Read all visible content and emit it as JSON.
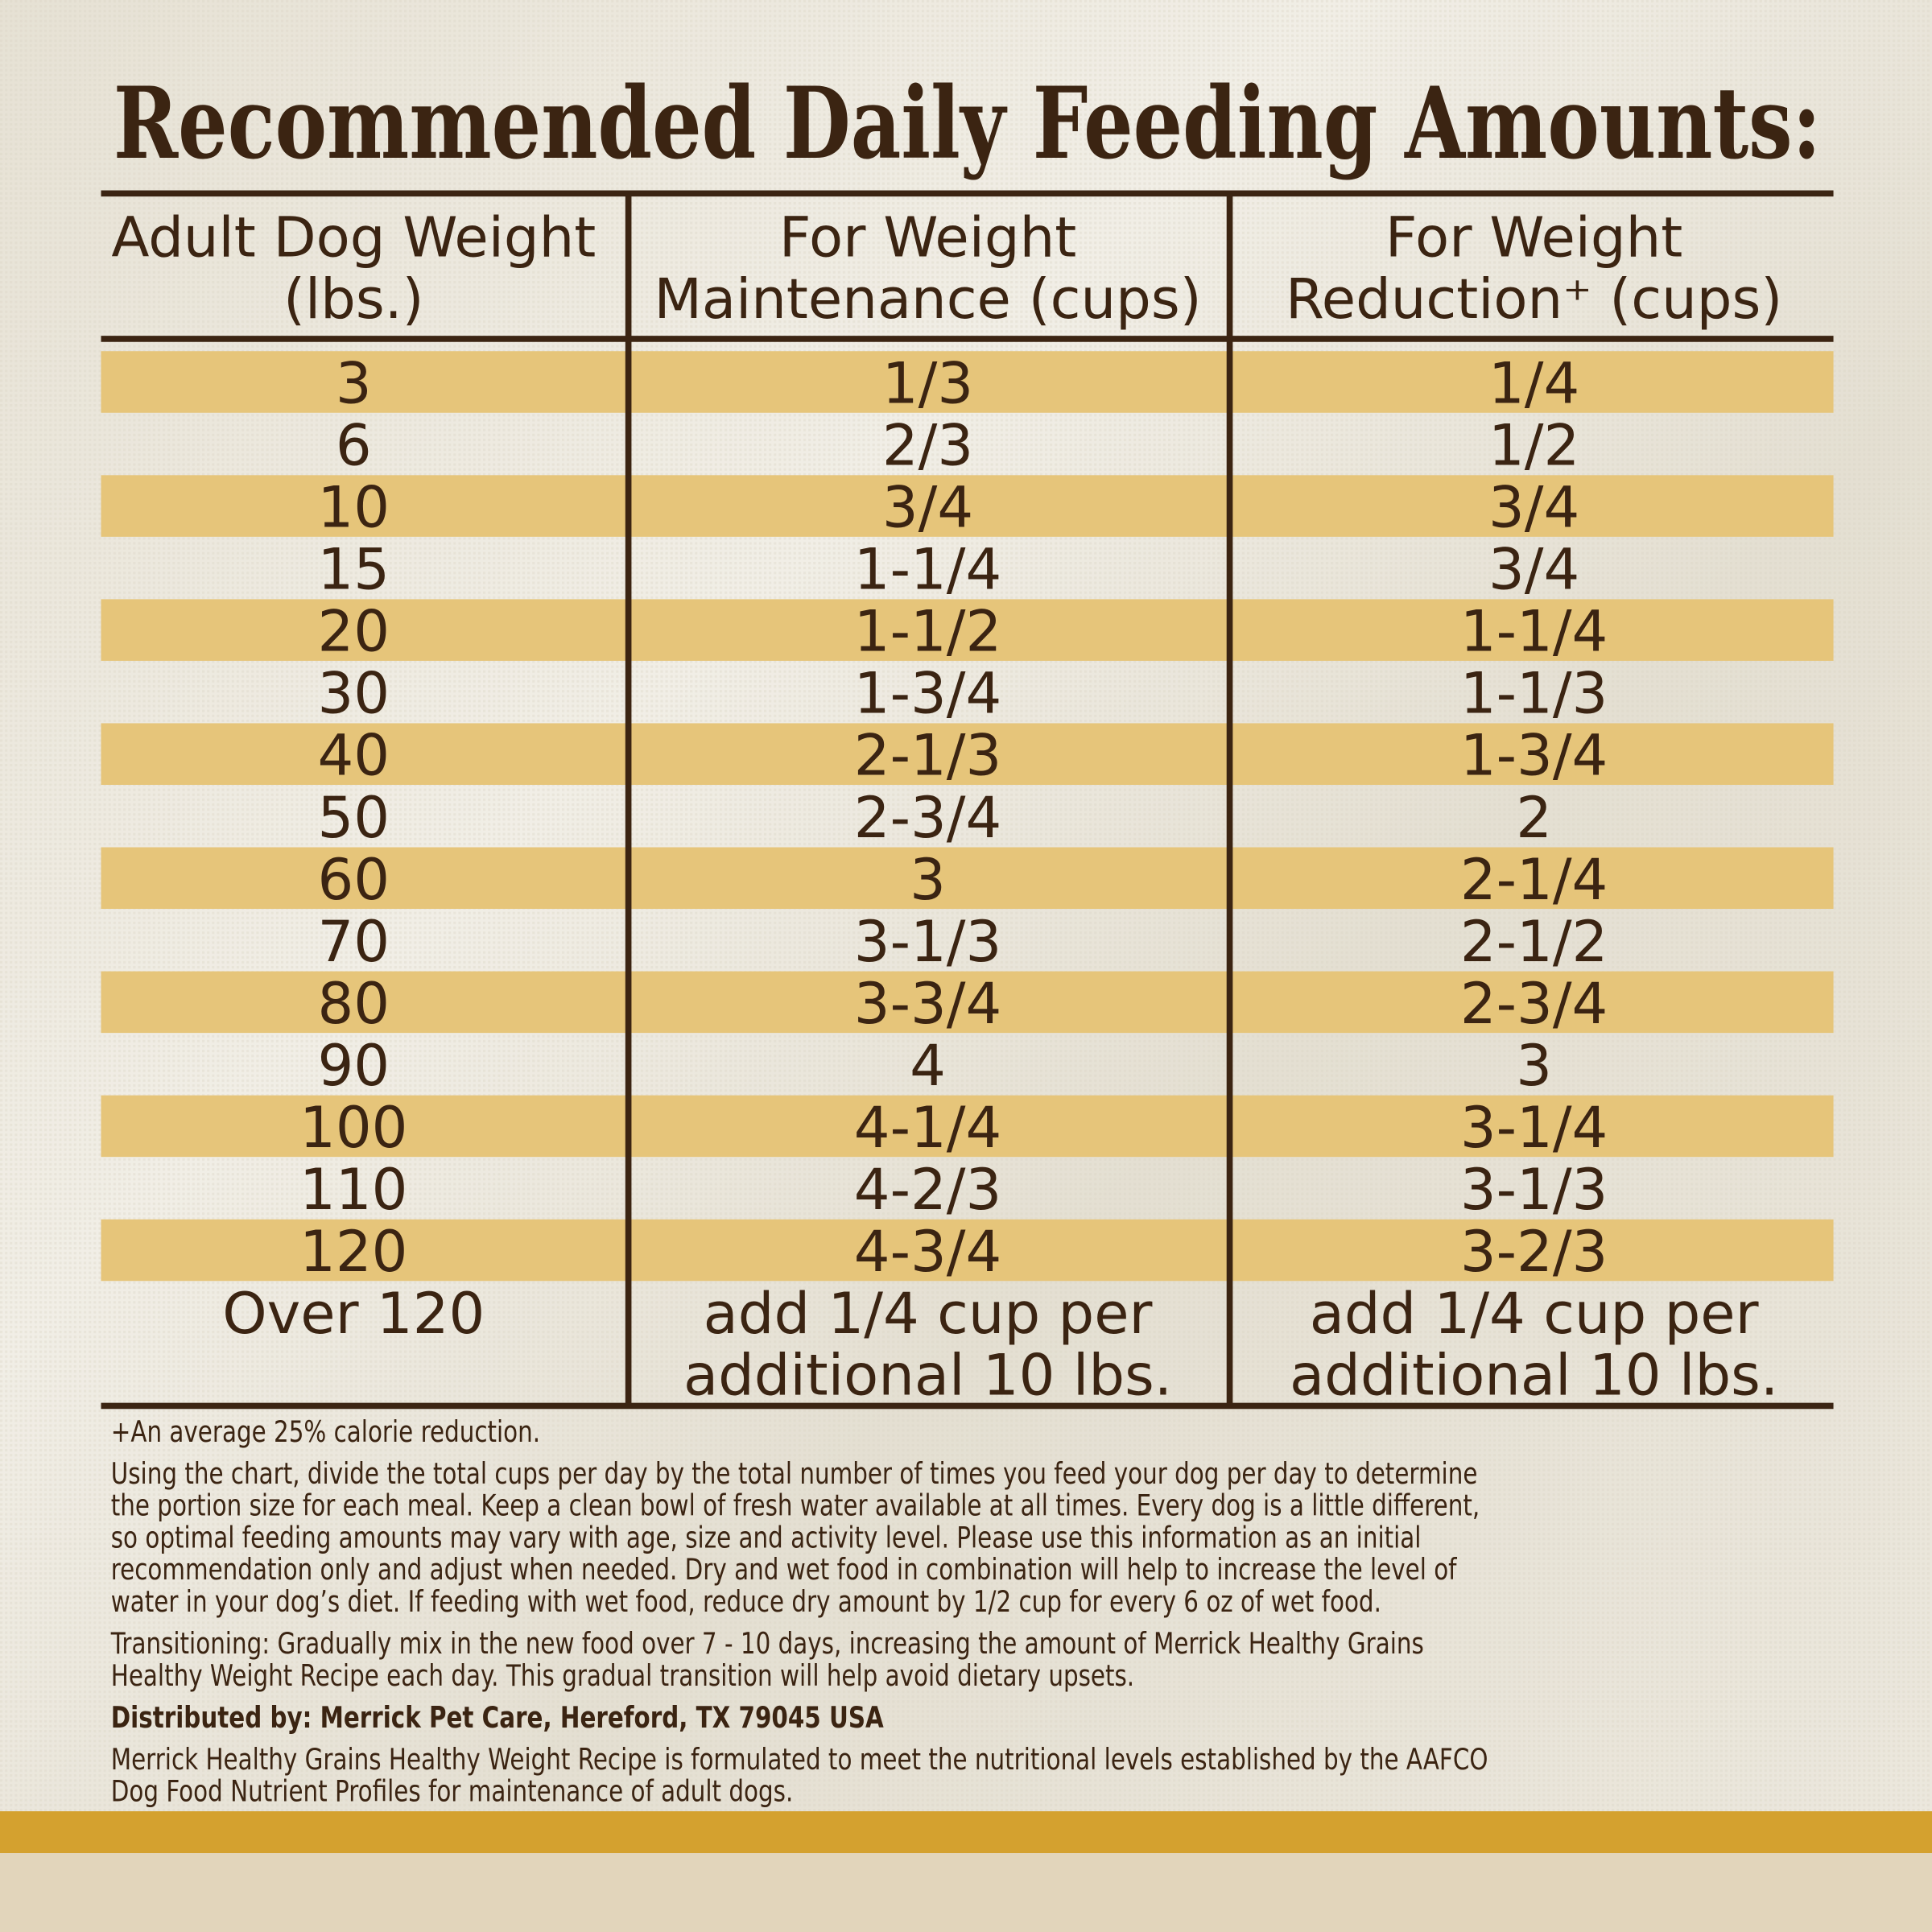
{
  "title": "Recommended Daily Feeding Amounts:",
  "table": {
    "headers": [
      [
        "Adult Dog Weight",
        "(lbs.)"
      ],
      [
        "For Weight",
        "Maintenance (cups)"
      ],
      [
        "For Weight",
        "Reduction⁺ (cups)"
      ]
    ],
    "rows": [
      [
        "3",
        "1/3",
        "1/4"
      ],
      [
        "6",
        "2/3",
        "1/2"
      ],
      [
        "10",
        "3/4",
        "3/4"
      ],
      [
        "15",
        "1-1/4",
        "3/4"
      ],
      [
        "20",
        "1-1/2",
        "1-1/4"
      ],
      [
        "30",
        "1-3/4",
        "1-1/3"
      ],
      [
        "40",
        "2-1/3",
        "1-3/4"
      ],
      [
        "50",
        "2-3/4",
        "2"
      ],
      [
        "60",
        "3",
        "2-1/4"
      ],
      [
        "70",
        "3-1/3",
        "2-1/2"
      ],
      [
        "80",
        "3-3/4",
        "2-3/4"
      ],
      [
        "90",
        "4",
        "3"
      ],
      [
        "100",
        "4-1/4",
        "3-1/4"
      ],
      [
        "110",
        "4-2/3",
        "3-1/3"
      ],
      [
        "120",
        "4-3/4",
        "3-2/3"
      ],
      [
        [
          "Over 120"
        ],
        [
          "add 1/4 cup per",
          "additional 10 lbs."
        ],
        [
          "add 1/4 cup per",
          "additional 10 lbs."
        ]
      ]
    ]
  },
  "notes": [
    {
      "bold": false,
      "lines": [
        "+An average 25% calorie reduction."
      ]
    },
    {
      "bold": false,
      "lines": [
        "Using the chart, divide the total cups per day by the total number of times you feed your dog per day to determine",
        "the portion size for each meal. Keep a clean bowl of fresh water available at all times. Every dog is a little different,",
        "so optimal feeding amounts may vary with age, size and activity level. Please use this information as an initial",
        "recommendation only and adjust when needed. Dry and wet food in combination will help to increase the level of",
        "water in your dog’s diet. If feeding with wet food, reduce dry amount by 1/2 cup for every 6 oz of wet food."
      ]
    },
    {
      "bold": false,
      "lines": [
        "Transitioning: Gradually mix in the new food over 7 - 10 days, increasing the amount of Merrick Healthy Grains",
        "Healthy Weight Recipe each day. This gradual transition will help avoid dietary upsets."
      ]
    },
    {
      "bold": true,
      "lines": [
        "Distributed by: Merrick Pet Care, Hereford, TX 79045 USA"
      ]
    },
    {
      "bold": false,
      "lines": [
        "Merrick Healthy Grains Healthy Weight Recipe is formulated to meet the nutritional levels established by the AAFCO",
        "Dog Food Nutrient Profiles for maintenance of adult dogs."
      ]
    }
  ]
}
